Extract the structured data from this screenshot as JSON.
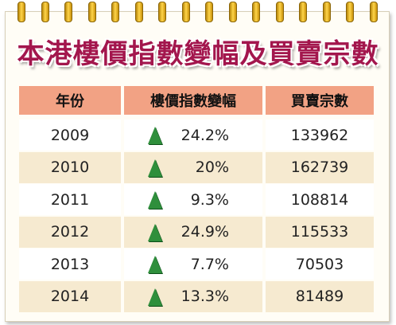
{
  "title": "本港樓價指數變幅及買賣宗數",
  "table": {
    "header": [
      "年份",
      "樓價指數變幅",
      "買賣宗數"
    ],
    "rows": [
      [
        "2009",
        "24.2%",
        "133962"
      ],
      [
        "2010",
        "20%",
        "162739"
      ],
      [
        "2011",
        "9.3%",
        "108814"
      ],
      [
        "2012",
        "24.9%",
        "115533"
      ],
      [
        "2013",
        "7.7%",
        "70503"
      ],
      [
        "2014",
        "13.3%",
        "81489"
      ]
    ]
  }
}
